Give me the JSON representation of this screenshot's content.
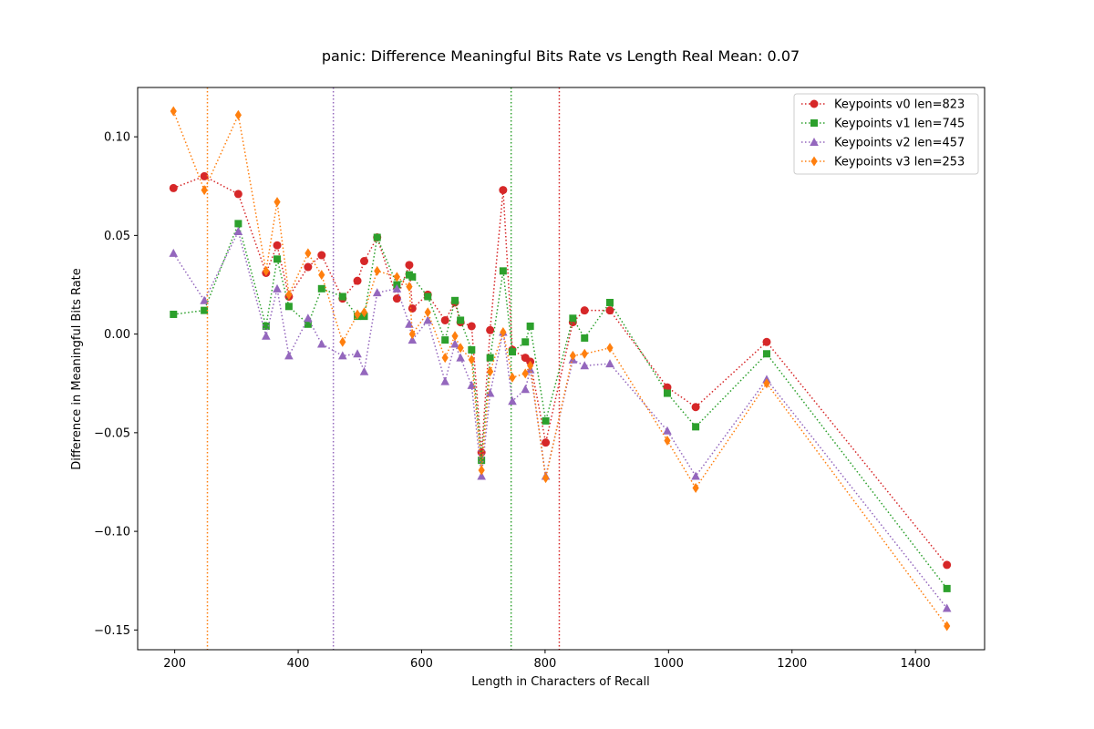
{
  "chart_data": {
    "type": "line",
    "title": "panic: Difference Meaningful Bits Rate vs Length Real Mean: 0.07",
    "xlabel": "Length in Characters of Recall",
    "ylabel": "Difference in Meaningful Bits Rate",
    "xlim": [
      140,
      1512
    ],
    "ylim": [
      -0.16,
      0.125
    ],
    "xticks": [
      200,
      400,
      600,
      800,
      1000,
      1200,
      1400
    ],
    "yticks": [
      -0.15,
      -0.1,
      -0.05,
      0.0,
      0.05,
      0.1
    ],
    "ytick_labels": [
      "−0.15",
      "−0.10",
      "−0.05",
      "0.00",
      "0.05",
      "0.10"
    ],
    "legend_position": "upper right",
    "grid": false,
    "series": [
      {
        "name": "Keypoints v0 len=823",
        "color": "#d62728",
        "marker": "circle",
        "vline": 823,
        "points": [
          [
            198,
            0.074
          ],
          [
            248,
            0.08
          ],
          [
            303,
            0.071
          ],
          [
            348,
            0.031
          ],
          [
            366,
            0.045
          ],
          [
            385,
            0.019
          ],
          [
            416,
            0.034
          ],
          [
            438,
            0.04
          ],
          [
            472,
            0.018
          ],
          [
            496,
            0.027
          ],
          [
            507,
            0.037
          ],
          [
            528,
            0.049
          ],
          [
            560,
            0.018
          ],
          [
            580,
            0.035
          ],
          [
            585,
            0.013
          ],
          [
            610,
            0.02
          ],
          [
            638,
            0.007
          ],
          [
            654,
            0.016
          ],
          [
            663,
            0.006
          ],
          [
            681,
            0.004
          ],
          [
            697,
            -0.06
          ],
          [
            711,
            0.002
          ],
          [
            732,
            0.073
          ],
          [
            747,
            -0.008
          ],
          [
            768,
            -0.012
          ],
          [
            776,
            -0.014
          ],
          [
            801,
            -0.055
          ],
          [
            845,
            0.006
          ],
          [
            864,
            0.012
          ],
          [
            905,
            0.012
          ],
          [
            998,
            -0.027
          ],
          [
            1044,
            -0.037
          ],
          [
            1159,
            -0.004
          ],
          [
            1451,
            -0.117
          ]
        ]
      },
      {
        "name": "Keypoints v1 len=745",
        "color": "#2ca02c",
        "marker": "square",
        "vline": 745,
        "points": [
          [
            198,
            0.01
          ],
          [
            248,
            0.012
          ],
          [
            303,
            0.056
          ],
          [
            348,
            0.004
          ],
          [
            366,
            0.038
          ],
          [
            385,
            0.014
          ],
          [
            416,
            0.005
          ],
          [
            438,
            0.023
          ],
          [
            472,
            0.019
          ],
          [
            496,
            0.009
          ],
          [
            507,
            0.009
          ],
          [
            528,
            0.049
          ],
          [
            560,
            0.025
          ],
          [
            580,
            0.03
          ],
          [
            585,
            0.029
          ],
          [
            610,
            0.019
          ],
          [
            638,
            -0.003
          ],
          [
            654,
            0.017
          ],
          [
            663,
            0.007
          ],
          [
            681,
            -0.008
          ],
          [
            697,
            -0.064
          ],
          [
            711,
            -0.012
          ],
          [
            732,
            0.032
          ],
          [
            747,
            -0.009
          ],
          [
            768,
            -0.004
          ],
          [
            776,
            0.004
          ],
          [
            801,
            -0.044
          ],
          [
            845,
            0.008
          ],
          [
            864,
            -0.002
          ],
          [
            905,
            0.016
          ],
          [
            998,
            -0.03
          ],
          [
            1044,
            -0.047
          ],
          [
            1159,
            -0.01
          ],
          [
            1451,
            -0.129
          ]
        ]
      },
      {
        "name": "Keypoints v2 len=457",
        "color": "#9467bd",
        "marker": "triangle",
        "vline": 457,
        "points": [
          [
            198,
            0.041
          ],
          [
            248,
            0.017
          ],
          [
            303,
            0.052
          ],
          [
            348,
            -0.001
          ],
          [
            366,
            0.023
          ],
          [
            385,
            -0.011
          ],
          [
            416,
            0.008
          ],
          [
            438,
            -0.005
          ],
          [
            472,
            -0.011
          ],
          [
            496,
            -0.01
          ],
          [
            507,
            -0.019
          ],
          [
            528,
            0.021
          ],
          [
            560,
            0.023
          ],
          [
            580,
            0.005
          ],
          [
            585,
            -0.003
          ],
          [
            610,
            0.007
          ],
          [
            638,
            -0.024
          ],
          [
            654,
            -0.005
          ],
          [
            663,
            -0.012
          ],
          [
            681,
            -0.026
          ],
          [
            697,
            -0.072
          ],
          [
            711,
            -0.03
          ],
          [
            732,
            0.001
          ],
          [
            747,
            -0.034
          ],
          [
            768,
            -0.028
          ],
          [
            776,
            -0.018
          ],
          [
            801,
            -0.072
          ],
          [
            845,
            -0.013
          ],
          [
            864,
            -0.016
          ],
          [
            905,
            -0.015
          ],
          [
            998,
            -0.049
          ],
          [
            1044,
            -0.072
          ],
          [
            1159,
            -0.023
          ],
          [
            1451,
            -0.139
          ]
        ]
      },
      {
        "name": "Keypoints v3 len=253",
        "color": "#ff7f0e",
        "marker": "diamond",
        "vline": 253,
        "points": [
          [
            198,
            0.113
          ],
          [
            248,
            0.073
          ],
          [
            303,
            0.111
          ],
          [
            348,
            0.032
          ],
          [
            366,
            0.067
          ],
          [
            385,
            0.02
          ],
          [
            416,
            0.041
          ],
          [
            438,
            0.03
          ],
          [
            472,
            -0.004
          ],
          [
            496,
            0.01
          ],
          [
            507,
            0.011
          ],
          [
            528,
            0.032
          ],
          [
            560,
            0.029
          ],
          [
            580,
            0.024
          ],
          [
            585,
            0.0
          ],
          [
            610,
            0.011
          ],
          [
            638,
            -0.012
          ],
          [
            654,
            -0.001
          ],
          [
            663,
            -0.007
          ],
          [
            681,
            -0.013
          ],
          [
            697,
            -0.069
          ],
          [
            711,
            -0.019
          ],
          [
            732,
            0.001
          ],
          [
            747,
            -0.022
          ],
          [
            768,
            -0.02
          ],
          [
            776,
            -0.016
          ],
          [
            801,
            -0.073
          ],
          [
            845,
            -0.011
          ],
          [
            864,
            -0.01
          ],
          [
            905,
            -0.007
          ],
          [
            998,
            -0.054
          ],
          [
            1044,
            -0.078
          ],
          [
            1159,
            -0.025
          ],
          [
            1451,
            -0.148
          ]
        ]
      }
    ]
  }
}
